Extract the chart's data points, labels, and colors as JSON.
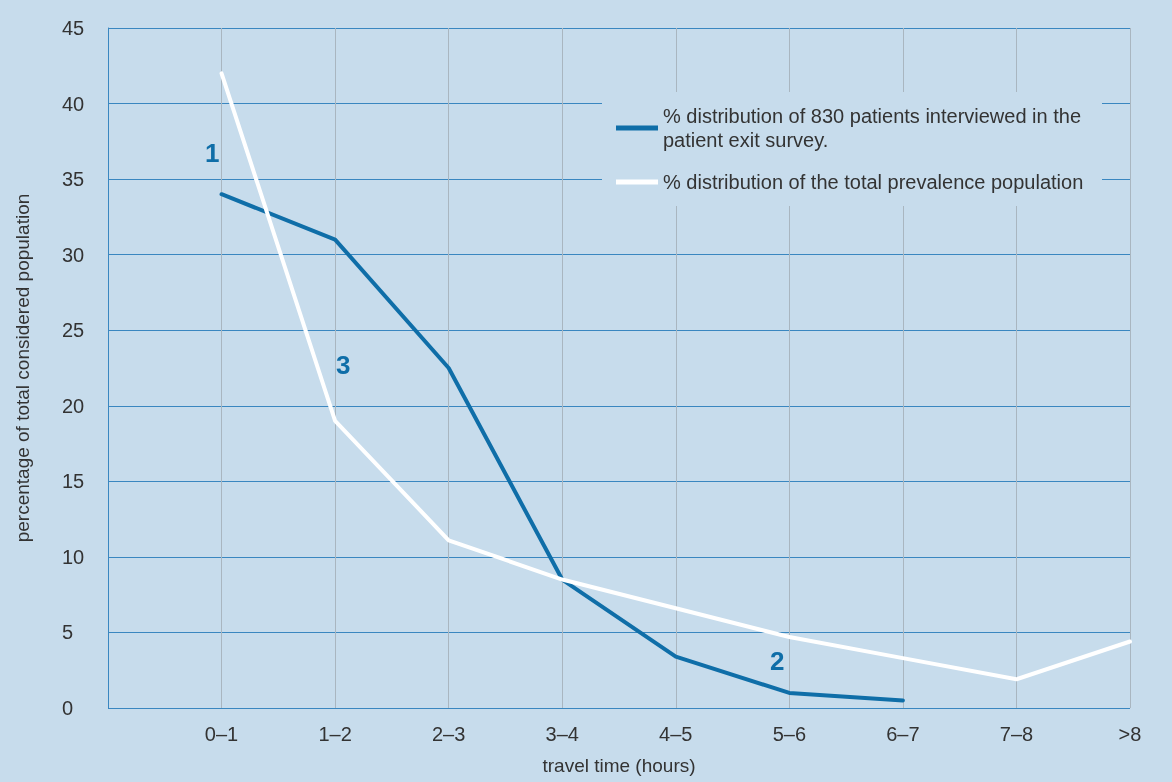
{
  "chart_data": {
    "type": "line",
    "xlabel": "travel time (hours)",
    "ylabel": "percentage of total considered population",
    "categories": [
      null,
      "0–1",
      "1–2",
      "2–3",
      "3–4",
      "4–5",
      "5–6",
      "6–7",
      "7–8",
      ">8"
    ],
    "series": [
      {
        "name": "% distribution of 830 patients interviewed in the patient exit survey.",
        "color": "#0f6ea8",
        "values": [
          null,
          34,
          31,
          22.5,
          8.5,
          3.4,
          1,
          0.5,
          null,
          null
        ]
      },
      {
        "name": "% distribution of the total prevalence population",
        "color": "#ffffff",
        "values": [
          null,
          42,
          19,
          11.1,
          8.5,
          6.6,
          4.7,
          3.3,
          1.9,
          4.4
        ]
      }
    ],
    "ylim": [
      0,
      45
    ],
    "yticks": [
      0,
      5,
      10,
      15,
      20,
      25,
      30,
      35,
      40,
      45
    ],
    "grid": true,
    "legend": "top right",
    "marker": "none",
    "line_style": "solid",
    "annotations": [
      "1",
      "3",
      "2"
    ]
  }
}
